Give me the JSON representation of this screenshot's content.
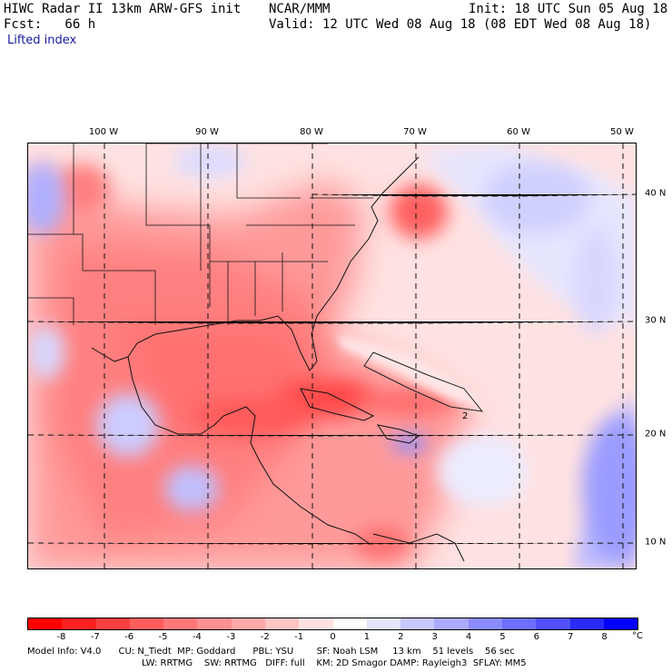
{
  "header": {
    "model_line": "HIWC Radar II 13km ARW-GFS init",
    "org": "NCAR/MMM",
    "init": "Init: 18 UTC Sun 05 Aug 18",
    "fcst": "Fcst:   66 h",
    "valid": "Valid: 12 UTC Wed 08 Aug 18 (08 EDT Wed 08 Aug 18)",
    "field": "Lifted index"
  },
  "map": {
    "lon_labels": [
      "100 W",
      "90 W",
      "80 W",
      "70 W",
      "60 W",
      "50 W"
    ],
    "lat_labels": [
      "40 N",
      "30 N",
      "20 N",
      "10 N"
    ],
    "contour_label": "2"
  },
  "colorbar": {
    "tick_labels": [
      "-8",
      "-7",
      "-6",
      "-5",
      "-4",
      "-3",
      "-2",
      "-1",
      "0",
      "1",
      "2",
      "3",
      "4",
      "5",
      "6",
      "7",
      "8"
    ],
    "unit": "°C",
    "colors": [
      "#ff0000",
      "#ff2020",
      "#ff4040",
      "#ff5e5e",
      "#ff7878",
      "#ff9090",
      "#ffa8a8",
      "#ffc4c4",
      "#ffe0e0",
      "#ffffff",
      "#e4e4ff",
      "#c8c8ff",
      "#aaaaff",
      "#8c8cff",
      "#6e6eff",
      "#5050ff",
      "#2a2aff",
      "#0000ff"
    ]
  },
  "footer": {
    "line1": "Model Info: V4.0      CU: N_Tiedt  MP: Goddard      PBL: YSU        SF: Noah LSM     13 km    51 levels    56 sec",
    "line2": "LW: RRTMG    SW: RRTMG   DIFF: full    KM: 2D Smagor DAMP: Rayleigh3  SFLAY: MM5"
  }
}
